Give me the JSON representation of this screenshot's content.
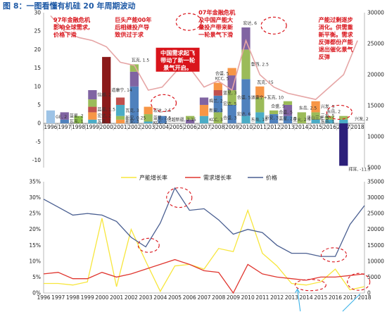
{
  "title": "图 8：一图看懂有机硅 20 年周期波动",
  "colors": {
    "title": "#1f5aa6",
    "annotation": "#d9141b",
    "price_top": "#e6a6a6",
    "capacity": "#f7e63c",
    "demand": "#e0362f",
    "price_bottom": "#4a5f91",
    "arrow": "#3db3e8",
    "dashed": "#d9141b"
  },
  "chart_data": [
    {
      "type": "bar",
      "stacked": true,
      "categories": [
        "1996",
        "1997",
        "1998",
        "1999",
        "2000",
        "2001",
        "2002",
        "2003",
        "2004",
        "2005",
        "2006",
        "2007",
        "2008",
        "2009",
        "2010",
        "2011",
        "2012",
        "2013",
        "2014",
        "2015",
        "2016",
        "2017",
        "2018"
      ],
      "ylim": [
        -12,
        30
      ],
      "y_ticks": [
        "30",
        "25",
        "20",
        "15",
        "10",
        "5",
        "0",
        "-5",
        "-10"
      ],
      "y2lim": [
        5000,
        30000
      ],
      "y2_ticks": [
        "30000",
        "25000",
        "20000",
        "15000",
        "10000",
        "5000"
      ],
      "legend": "none",
      "price_series": [
        29500,
        27000,
        26000,
        25500,
        24500,
        22000,
        21500,
        17500,
        18000,
        20500,
        21000,
        18000,
        19000,
        17500,
        25500,
        20000,
        18000,
        17000,
        16500,
        16000,
        18000,
        20000,
        25500
      ],
      "segments": [
        {
          "year": "1996",
          "value": 3.5,
          "label": "GE, 2",
          "color": "#9dc3e6"
        },
        {
          "year": "1997",
          "value": 1.0,
          "label": "瓦克, 1",
          "color": "#4f81bd"
        },
        {
          "year": "1997",
          "value": 2.0,
          "label": "蓝星, 2",
          "color": "#8064a2"
        },
        {
          "year": "1998",
          "value": 2.0,
          "label": "",
          "color": "#8cbf4a"
        },
        {
          "year": "1999",
          "value": 1.0,
          "label": "瓦克, 1",
          "color": "#4bacc6"
        },
        {
          "year": "1999",
          "value": 2.0,
          "label": "宏达, 2",
          "color": "#f79646"
        },
        {
          "year": "1999",
          "value": 1.5,
          "label": "蓝星, 1.5",
          "color": "#c0504d"
        },
        {
          "year": "1999",
          "value": 2.0,
          "label": "",
          "color": "#9bbb59"
        },
        {
          "year": "1999",
          "value": 2.5,
          "label": "信越, 2",
          "color": "#8064a2"
        },
        {
          "year": "2000",
          "value": 18.0,
          "label": "道康宁, 14",
          "color": "#8b1a1a"
        },
        {
          "year": "2001",
          "value": 1.0,
          "label": "新安, 3",
          "color": "#f79646"
        },
        {
          "year": "2001",
          "value": 1.0,
          "label": "新安, 0.25",
          "color": "#9bbb59"
        },
        {
          "year": "2001",
          "value": 3.0,
          "label": "瓦克, 3",
          "color": "#4bacc6"
        },
        {
          "year": "2001",
          "value": 2.0,
          "label": "",
          "color": "#c0504d"
        },
        {
          "year": "2002",
          "value": 10.0,
          "label": "",
          "color": "#4f81bd"
        },
        {
          "year": "2002",
          "value": 4.0,
          "label": "",
          "color": "#8064a2"
        },
        {
          "year": "2002",
          "value": 2.0,
          "label": "",
          "color": "#9bbb59"
        },
        {
          "year": "2003",
          "value": 0.5,
          "label": "KCC, 2",
          "color": "#4bacc6"
        },
        {
          "year": "2003",
          "value": 2.0,
          "label": "蓝星, 2.5",
          "color": "#9bbb59"
        },
        {
          "year": "2003",
          "value": 2.0,
          "label": "宏达, 2.5",
          "color": "#f79646"
        },
        {
          "year": "2004",
          "value": 2.0,
          "label": "信越新疆, 2.15",
          "color": "#4f81bd"
        },
        {
          "year": "2006",
          "value": 1.0,
          "label": "",
          "color": "#8064a2"
        },
        {
          "year": "2006",
          "value": 1.0,
          "label": "",
          "color": "#9bbb59"
        },
        {
          "year": "2007",
          "value": 2.0,
          "label": "KCC, 3",
          "color": "#4bacc6"
        },
        {
          "year": "2007",
          "value": 3.0,
          "label": "新安, 3",
          "color": "#f79646"
        },
        {
          "year": "2007",
          "value": 2.0,
          "label": "梅兰, 2",
          "color": "#8064a2"
        },
        {
          "year": "2008",
          "value": 3.0,
          "label": "合盛, 3",
          "color": "#9bbb59"
        },
        {
          "year": "2008",
          "value": 4.5,
          "label": "宏达, 5",
          "color": "#4f81bd"
        },
        {
          "year": "2008",
          "value": 1.5,
          "label": "蓝星, 3",
          "color": "#c0504d"
        },
        {
          "year": "2008",
          "value": 2.0,
          "label": "",
          "color": "#f79646"
        },
        {
          "year": "2009",
          "value": 5.0,
          "label": "宏达, 6",
          "color": "#4f81bd"
        },
        {
          "year": "2009",
          "value": 4.0,
          "label": "合盛, 5",
          "color": "#9bbb59"
        },
        {
          "year": "2009",
          "value": 4.0,
          "label": "",
          "color": "#8064a2"
        },
        {
          "year": "2009",
          "value": 2.0,
          "label": "",
          "color": "#f79646"
        },
        {
          "year": "2010",
          "value": 2.0,
          "label": "东岳, 10",
          "color": "#4bacc6"
        },
        {
          "year": "2010",
          "value": 10.0,
          "label": "道康宁+瓦克, 10",
          "color": "#4f81bd"
        },
        {
          "year": "2010",
          "value": 8.0,
          "label": "鲁西, 2.5",
          "color": "#9bbb59"
        },
        {
          "year": "2010",
          "value": 6.0,
          "label": "",
          "color": "#8064a2"
        },
        {
          "year": "2011",
          "value": 3.0,
          "label": "新安, 3",
          "color": "#4bacc6"
        },
        {
          "year": "2011",
          "value": 4.0,
          "label": "",
          "color": "#9bbb59"
        },
        {
          "year": "2011",
          "value": 3.0,
          "label": "",
          "color": "#f79646"
        },
        {
          "year": "2012",
          "value": 2.5,
          "label": "蓝星, 2.5",
          "color": "#4f81bd"
        },
        {
          "year": "2012",
          "value": 1.0,
          "label": "合盛, 5",
          "color": "#9bbb59"
        },
        {
          "year": "2013",
          "value": 2.0,
          "label": "星火, 2.5",
          "color": "#4f81bd"
        },
        {
          "year": "2013",
          "value": 3.0,
          "label": "",
          "color": "#8064a2"
        },
        {
          "year": "2013",
          "value": 1.0,
          "label": "",
          "color": "#9bbb59"
        },
        {
          "year": "2014",
          "value": 3.0,
          "label": "唐山三友, 5",
          "color": "#9bbb59"
        },
        {
          "year": "2015",
          "value": 1.0,
          "label": "东岳, 1",
          "color": "#4bacc6"
        },
        {
          "year": "2015",
          "value": 2.0,
          "label": "三友, 5",
          "color": "#9bbb59"
        },
        {
          "year": "2015",
          "value": 3.0,
          "label": "兴发, 5",
          "color": "#f79646"
        },
        {
          "year": "2016",
          "value": 1.0,
          "label": "",
          "color": "#4bacc6"
        },
        {
          "year": "2016",
          "value": 1.0,
          "label": "",
          "color": "#9bbb59"
        },
        {
          "year": "2017",
          "value": -11.5,
          "label": "拜耳, -11.5",
          "color": "#2c1f7a"
        },
        {
          "year": "2017",
          "value": 1.0,
          "label": "",
          "color": "#4bacc6"
        },
        {
          "year": "2017",
          "value": 1.0,
          "label": "",
          "color": "#9bbb59"
        }
      ],
      "extra_labels": [
        {
          "year": "2002",
          "text": "瓦克, 1.5"
        },
        {
          "year": "2008",
          "text": "KCC, 5"
        },
        {
          "year": "2008",
          "text": "合盛, 5"
        },
        {
          "year": "2010",
          "text": "宏达, 6"
        },
        {
          "year": "2011",
          "text": "瓦克, 15"
        },
        {
          "year": "2012",
          "text": "合盛, 5"
        },
        {
          "year": "2014",
          "text": "东岳, 2.5"
        },
        {
          "year": "2016",
          "text": "东岳, 2"
        },
        {
          "year": "2018",
          "text": "兴发, 2"
        }
      ]
    },
    {
      "type": "line",
      "categories": [
        "1996",
        "1997",
        "1998",
        "1999",
        "2000",
        "2001",
        "2002",
        "2003",
        "2004",
        "2005",
        "2006",
        "2007",
        "2008",
        "2009",
        "2010",
        "2011",
        "2012",
        "2013",
        "2014",
        "2015",
        "2016",
        "2017",
        "2018"
      ],
      "ylim": [
        0,
        35
      ],
      "y_ticks": [
        "35%",
        "30%",
        "25%",
        "20%",
        "15%",
        "10%",
        "5%",
        "0%"
      ],
      "y2lim": [
        0,
        35000
      ],
      "y2_ticks": [
        "35000",
        "30000",
        "25000",
        "20000",
        "15000",
        "10000",
        "5000",
        "0"
      ],
      "legend": "top",
      "series": [
        {
          "name": "产能增长率",
          "axis": "left",
          "values": [
            3.0,
            3.0,
            2.5,
            3.5,
            23.5,
            2.0,
            20.0,
            10.0,
            0.5,
            8.5,
            9.0,
            7.5,
            14.0,
            13.0,
            26.0,
            12.5,
            8.5,
            3.0,
            2.5,
            3.5,
            7.5,
            1.0,
            2.0
          ]
        },
        {
          "name": "需求增长率",
          "axis": "left",
          "values": [
            6.0,
            6.5,
            4.5,
            4.5,
            6.5,
            5.0,
            6.0,
            7.5,
            9.0,
            10.5,
            9.0,
            7.0,
            6.5,
            0.0,
            9.0,
            6.0,
            5.0,
            4.5,
            4.0,
            5.0,
            5.0,
            5.5,
            6.0
          ]
        },
        {
          "name": "价格",
          "axis": "right",
          "values": [
            29500,
            27000,
            24500,
            25000,
            24500,
            22500,
            17500,
            14500,
            22000,
            33000,
            26000,
            26500,
            23000,
            18500,
            20000,
            19000,
            15000,
            12500,
            12500,
            11500,
            11500,
            21500,
            27500
          ]
        }
      ]
    }
  ],
  "annotations": [
    {
      "id": "a1",
      "lines": [
        "97年金融危机",
        "影响全球需求,",
        "价格下滑"
      ],
      "style": "red"
    },
    {
      "id": "a2",
      "lines": [
        "巨头产能00年",
        "后相继投产导",
        "致供过于求"
      ],
      "style": "red"
    },
    {
      "id": "a3",
      "lines": [
        "07年金融危机",
        "及中国产能大",
        "量投产带来新",
        "一轮景气下滑"
      ],
      "style": "red"
    },
    {
      "id": "a4",
      "lines": [
        "产能过剩逐步",
        "消化。供需重",
        "新平衡。需求",
        "反弹都份产能",
        "退出催化景气",
        "反弹"
      ],
      "style": "red"
    },
    {
      "id": "a5",
      "lines": [
        "中国需求起飞",
        "带动了新一轮",
        "景气开启。"
      ],
      "style": "white"
    }
  ]
}
